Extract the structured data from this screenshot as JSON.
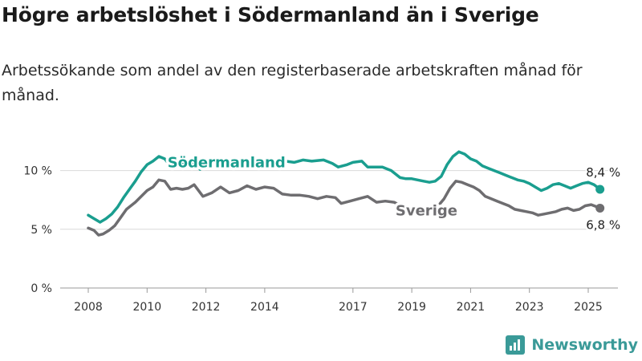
{
  "title": "Högre arbetslöshet i Södermanland än i Sverige",
  "subtitle": "Arbetssökande som andel av den registerbaserade arbetskraften månad för månad.",
  "brand": {
    "name": "Newsworthy",
    "logo_icon": "bar-chart-logo-icon",
    "color": "#3a9a98"
  },
  "chart_data": {
    "type": "line",
    "x_unit": "year",
    "y_unit": "%",
    "ylim": [
      0,
      12.5
    ],
    "xlim": [
      2007.6,
      2025.9
    ],
    "y_ticks": [
      0,
      5,
      10
    ],
    "y_tick_labels": [
      "0 %",
      "5 %",
      "10 %"
    ],
    "x_ticks": [
      2008,
      2010,
      2012,
      2014,
      2017,
      2019,
      2021,
      2023,
      2025
    ],
    "x_tick_labels": [
      "2008",
      "2010",
      "2012",
      "2014",
      "2017",
      "2019",
      "2021",
      "2023",
      "2025"
    ],
    "grid": true,
    "series": [
      {
        "name": "Södermanland",
        "color": "#1a9e8f",
        "label_at": 2012.7,
        "end_label": "8,4 %",
        "points": [
          [
            2008.0,
            6.2
          ],
          [
            2008.2,
            5.9
          ],
          [
            2008.4,
            5.6
          ],
          [
            2008.6,
            5.9
          ],
          [
            2008.8,
            6.3
          ],
          [
            2009.0,
            6.9
          ],
          [
            2009.2,
            7.7
          ],
          [
            2009.4,
            8.4
          ],
          [
            2009.6,
            9.1
          ],
          [
            2009.8,
            9.9
          ],
          [
            2010.0,
            10.5
          ],
          [
            2010.2,
            10.8
          ],
          [
            2010.4,
            11.2
          ],
          [
            2010.6,
            11.0
          ],
          [
            2010.7,
            10.7
          ],
          [
            2011.0,
            10.7
          ],
          [
            2011.2,
            10.6
          ],
          [
            2011.4,
            10.9
          ],
          [
            2011.6,
            10.7
          ],
          [
            2011.8,
            10.1
          ],
          [
            2012.0,
            10.6
          ],
          [
            2012.3,
            10.9
          ],
          [
            2012.6,
            10.8
          ],
          [
            2012.9,
            10.7
          ],
          [
            2013.2,
            10.8
          ],
          [
            2013.5,
            10.9
          ],
          [
            2013.8,
            10.7
          ],
          [
            2014.1,
            10.8
          ],
          [
            2014.4,
            10.9
          ],
          [
            2014.7,
            10.8
          ],
          [
            2015.0,
            10.7
          ],
          [
            2015.3,
            10.9
          ],
          [
            2015.6,
            10.8
          ],
          [
            2016.0,
            10.9
          ],
          [
            2016.3,
            10.6
          ],
          [
            2016.5,
            10.3
          ],
          [
            2016.8,
            10.5
          ],
          [
            2017.0,
            10.7
          ],
          [
            2017.3,
            10.8
          ],
          [
            2017.5,
            10.3
          ],
          [
            2017.8,
            10.3
          ],
          [
            2018.0,
            10.3
          ],
          [
            2018.3,
            10.0
          ],
          [
            2018.6,
            9.4
          ],
          [
            2018.8,
            9.3
          ],
          [
            2019.0,
            9.3
          ],
          [
            2019.2,
            9.2
          ],
          [
            2019.4,
            9.1
          ],
          [
            2019.6,
            9.0
          ],
          [
            2019.8,
            9.1
          ],
          [
            2020.0,
            9.5
          ],
          [
            2020.2,
            10.5
          ],
          [
            2020.4,
            11.2
          ],
          [
            2020.6,
            11.6
          ],
          [
            2020.8,
            11.4
          ],
          [
            2021.0,
            11.0
          ],
          [
            2021.2,
            10.8
          ],
          [
            2021.4,
            10.4
          ],
          [
            2021.6,
            10.2
          ],
          [
            2021.8,
            10.0
          ],
          [
            2022.0,
            9.8
          ],
          [
            2022.2,
            9.6
          ],
          [
            2022.4,
            9.4
          ],
          [
            2022.6,
            9.2
          ],
          [
            2022.8,
            9.1
          ],
          [
            2023.0,
            8.9
          ],
          [
            2023.2,
            8.6
          ],
          [
            2023.4,
            8.3
          ],
          [
            2023.6,
            8.5
          ],
          [
            2023.8,
            8.8
          ],
          [
            2024.0,
            8.9
          ],
          [
            2024.2,
            8.7
          ],
          [
            2024.4,
            8.5
          ],
          [
            2024.6,
            8.7
          ],
          [
            2024.8,
            8.9
          ],
          [
            2025.0,
            9.0
          ],
          [
            2025.2,
            8.8
          ],
          [
            2025.4,
            8.4
          ]
        ]
      },
      {
        "name": "Sverige",
        "color": "#6e6d70",
        "label_at": 2019.5,
        "end_label": "6,8 %",
        "points": [
          [
            2008.0,
            5.1
          ],
          [
            2008.2,
            4.9
          ],
          [
            2008.35,
            4.5
          ],
          [
            2008.5,
            4.6
          ],
          [
            2008.7,
            4.9
          ],
          [
            2008.9,
            5.3
          ],
          [
            2009.1,
            6.0
          ],
          [
            2009.3,
            6.7
          ],
          [
            2009.6,
            7.3
          ],
          [
            2009.8,
            7.8
          ],
          [
            2010.0,
            8.3
          ],
          [
            2010.2,
            8.6
          ],
          [
            2010.4,
            9.2
          ],
          [
            2010.6,
            9.1
          ],
          [
            2010.8,
            8.4
          ],
          [
            2011.0,
            8.5
          ],
          [
            2011.2,
            8.4
          ],
          [
            2011.4,
            8.5
          ],
          [
            2011.6,
            8.8
          ],
          [
            2011.9,
            7.8
          ],
          [
            2012.2,
            8.1
          ],
          [
            2012.5,
            8.6
          ],
          [
            2012.8,
            8.1
          ],
          [
            2013.1,
            8.3
          ],
          [
            2013.4,
            8.7
          ],
          [
            2013.7,
            8.4
          ],
          [
            2014.0,
            8.6
          ],
          [
            2014.3,
            8.5
          ],
          [
            2014.6,
            8.0
          ],
          [
            2014.9,
            7.9
          ],
          [
            2015.2,
            7.9
          ],
          [
            2015.5,
            7.8
          ],
          [
            2015.8,
            7.6
          ],
          [
            2016.1,
            7.8
          ],
          [
            2016.4,
            7.7
          ],
          [
            2016.6,
            7.2
          ],
          [
            2016.9,
            7.4
          ],
          [
            2017.2,
            7.6
          ],
          [
            2017.5,
            7.8
          ],
          [
            2017.8,
            7.3
          ],
          [
            2018.1,
            7.4
          ],
          [
            2018.4,
            7.3
          ],
          [
            2018.7,
            6.9
          ],
          [
            2019.0,
            6.8
          ],
          [
            2019.3,
            6.6
          ],
          [
            2019.6,
            6.7
          ],
          [
            2019.9,
            7.0
          ],
          [
            2020.1,
            7.6
          ],
          [
            2020.3,
            8.5
          ],
          [
            2020.5,
            9.1
          ],
          [
            2020.7,
            9.0
          ],
          [
            2020.9,
            8.8
          ],
          [
            2021.1,
            8.6
          ],
          [
            2021.3,
            8.3
          ],
          [
            2021.5,
            7.8
          ],
          [
            2021.7,
            7.6
          ],
          [
            2021.9,
            7.4
          ],
          [
            2022.1,
            7.2
          ],
          [
            2022.3,
            7.0
          ],
          [
            2022.5,
            6.7
          ],
          [
            2022.7,
            6.6
          ],
          [
            2022.9,
            6.5
          ],
          [
            2023.1,
            6.4
          ],
          [
            2023.3,
            6.2
          ],
          [
            2023.5,
            6.3
          ],
          [
            2023.7,
            6.4
          ],
          [
            2023.9,
            6.5
          ],
          [
            2024.1,
            6.7
          ],
          [
            2024.3,
            6.8
          ],
          [
            2024.5,
            6.6
          ],
          [
            2024.7,
            6.7
          ],
          [
            2024.9,
            7.0
          ],
          [
            2025.1,
            7.1
          ],
          [
            2025.4,
            6.8
          ]
        ]
      }
    ]
  }
}
